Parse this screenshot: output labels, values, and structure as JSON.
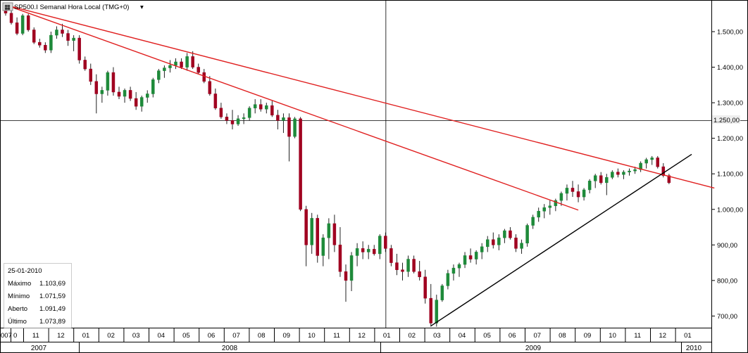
{
  "header": {
    "symbol_icon": "chart-symbol-icon",
    "title": "SP500.I Semanal Hora Local (TMG+0)",
    "dropdown_icon": "caret-down-icon"
  },
  "crosshair": {
    "price_label": "1.250,00"
  },
  "info_box": {
    "date": "25-01-2010",
    "rows": [
      {
        "label": "Máximo",
        "value": "1.103,69"
      },
      {
        "label": "Mínimo",
        "value": "1.071,59"
      },
      {
        "label": "Aberto",
        "value": "1.091,49"
      },
      {
        "label": "Último",
        "value": "1.073,89"
      }
    ]
  },
  "x_axis": {
    "first_cut_label": "007",
    "first_partial_label": "0",
    "months": [
      "11",
      "12",
      "01",
      "02",
      "03",
      "04",
      "05",
      "06",
      "07",
      "08",
      "09",
      "10",
      "11",
      "12",
      "01",
      "02",
      "03",
      "04",
      "05",
      "06",
      "07",
      "08",
      "09",
      "10",
      "11",
      "12",
      "01"
    ],
    "years": [
      "2007",
      "2008",
      "2009",
      "2010"
    ]
  },
  "colors": {
    "up": "#1e8a3a",
    "down": "#a00020",
    "wick": "#222222",
    "trend_red": "#e02020",
    "trend_black": "#000000",
    "grid": "#000000"
  },
  "chart_data": {
    "type": "candlestick",
    "title": "SP500.I Semanal Hora Local (TMG+0)",
    "ylim": [
      670,
      1580
    ],
    "yticks": [
      "1.500,00",
      "1.400,00",
      "1.300,00",
      "1.200,00",
      "1.100,00",
      "1.000,00",
      "900,00",
      "800,00",
      "700,00"
    ],
    "ytick_values": [
      1500,
      1400,
      1300,
      1200,
      1100,
      1000,
      900,
      800,
      700
    ],
    "x_start": "2007-10-01",
    "candles": [
      [
        1560,
        1575,
        1545,
        1552
      ],
      [
        1552,
        1560,
        1520,
        1525
      ],
      [
        1525,
        1540,
        1490,
        1495
      ],
      [
        1495,
        1550,
        1490,
        1545
      ],
      [
        1545,
        1550,
        1500,
        1505
      ],
      [
        1505,
        1512,
        1465,
        1470
      ],
      [
        1470,
        1480,
        1455,
        1462
      ],
      [
        1462,
        1470,
        1440,
        1448
      ],
      [
        1448,
        1500,
        1440,
        1490
      ],
      [
        1490,
        1515,
        1480,
        1505
      ],
      [
        1505,
        1522,
        1485,
        1495
      ],
      [
        1495,
        1505,
        1460,
        1475
      ],
      [
        1475,
        1490,
        1445,
        1482
      ],
      [
        1482,
        1490,
        1410,
        1420
      ],
      [
        1420,
        1430,
        1390,
        1395
      ],
      [
        1395,
        1410,
        1350,
        1360
      ],
      [
        1360,
        1380,
        1270,
        1325
      ],
      [
        1325,
        1345,
        1300,
        1335
      ],
      [
        1335,
        1390,
        1320,
        1385
      ],
      [
        1385,
        1400,
        1320,
        1330
      ],
      [
        1330,
        1345,
        1310,
        1318
      ],
      [
        1318,
        1340,
        1300,
        1335
      ],
      [
        1335,
        1345,
        1305,
        1312
      ],
      [
        1312,
        1330,
        1280,
        1290
      ],
      [
        1290,
        1320,
        1275,
        1315
      ],
      [
        1315,
        1335,
        1300,
        1325
      ],
      [
        1325,
        1370,
        1315,
        1365
      ],
      [
        1365,
        1395,
        1355,
        1390
      ],
      [
        1390,
        1405,
        1370,
        1398
      ],
      [
        1398,
        1420,
        1385,
        1405
      ],
      [
        1405,
        1425,
        1395,
        1415
      ],
      [
        1415,
        1425,
        1395,
        1400
      ],
      [
        1400,
        1440,
        1390,
        1430
      ],
      [
        1430,
        1445,
        1395,
        1400
      ],
      [
        1400,
        1410,
        1380,
        1385
      ],
      [
        1385,
        1395,
        1355,
        1360
      ],
      [
        1360,
        1375,
        1320,
        1325
      ],
      [
        1325,
        1340,
        1280,
        1285
      ],
      [
        1285,
        1300,
        1255,
        1260
      ],
      [
        1260,
        1270,
        1240,
        1250
      ],
      [
        1250,
        1280,
        1225,
        1240
      ],
      [
        1240,
        1265,
        1235,
        1255
      ],
      [
        1255,
        1270,
        1240,
        1258
      ],
      [
        1258,
        1290,
        1250,
        1285
      ],
      [
        1285,
        1310,
        1270,
        1295
      ],
      [
        1295,
        1310,
        1275,
        1282
      ],
      [
        1282,
        1300,
        1270,
        1292
      ],
      [
        1292,
        1305,
        1260,
        1265
      ],
      [
        1265,
        1280,
        1225,
        1250
      ],
      [
        1250,
        1270,
        1215,
        1258
      ],
      [
        1258,
        1270,
        1135,
        1205
      ],
      [
        1205,
        1260,
        1200,
        1255
      ],
      [
        1255,
        1260,
        995,
        1000
      ],
      [
        1000,
        1010,
        840,
        900
      ],
      [
        900,
        990,
        875,
        975
      ],
      [
        975,
        985,
        850,
        870
      ],
      [
        870,
        930,
        840,
        920
      ],
      [
        920,
        975,
        860,
        960
      ],
      [
        960,
        985,
        880,
        900
      ],
      [
        900,
        950,
        810,
        825
      ],
      [
        825,
        845,
        740,
        800
      ],
      [
        800,
        880,
        770,
        870
      ],
      [
        870,
        905,
        840,
        890
      ],
      [
        890,
        910,
        860,
        880
      ],
      [
        880,
        900,
        860,
        888
      ],
      [
        888,
        900,
        870,
        875
      ],
      [
        875,
        930,
        860,
        925
      ],
      [
        925,
        935,
        880,
        890
      ],
      [
        890,
        900,
        840,
        850
      ],
      [
        850,
        875,
        815,
        830
      ],
      [
        830,
        850,
        800,
        825
      ],
      [
        825,
        870,
        810,
        860
      ],
      [
        860,
        870,
        820,
        825
      ],
      [
        825,
        855,
        800,
        810
      ],
      [
        810,
        830,
        735,
        750
      ],
      [
        750,
        790,
        670,
        680
      ],
      [
        680,
        760,
        670,
        745
      ],
      [
        745,
        790,
        740,
        785
      ],
      [
        785,
        830,
        775,
        820
      ],
      [
        820,
        845,
        800,
        835
      ],
      [
        835,
        850,
        810,
        845
      ],
      [
        845,
        880,
        835,
        870
      ],
      [
        870,
        890,
        850,
        860
      ],
      [
        860,
        885,
        845,
        880
      ],
      [
        880,
        905,
        860,
        895
      ],
      [
        895,
        925,
        880,
        915
      ],
      [
        915,
        935,
        890,
        900
      ],
      [
        900,
        930,
        885,
        920
      ],
      [
        920,
        945,
        905,
        940
      ],
      [
        940,
        950,
        915,
        920
      ],
      [
        920,
        930,
        880,
        890
      ],
      [
        890,
        915,
        875,
        905
      ],
      [
        905,
        960,
        895,
        955
      ],
      [
        955,
        985,
        945,
        978
      ],
      [
        978,
        1005,
        965,
        995
      ],
      [
        995,
        1015,
        975,
        1005
      ],
      [
        1005,
        1025,
        985,
        1010
      ],
      [
        1010,
        1030,
        995,
        1025
      ],
      [
        1025,
        1050,
        1010,
        1045
      ],
      [
        1045,
        1070,
        1025,
        1060
      ],
      [
        1060,
        1080,
        1035,
        1050
      ],
      [
        1050,
        1070,
        1020,
        1035
      ],
      [
        1035,
        1060,
        1025,
        1055
      ],
      [
        1055,
        1085,
        1045,
        1080
      ],
      [
        1080,
        1100,
        1060,
        1095
      ],
      [
        1095,
        1105,
        1070,
        1075
      ],
      [
        1075,
        1100,
        1040,
        1090
      ],
      [
        1090,
        1110,
        1085,
        1105
      ],
      [
        1105,
        1115,
        1090,
        1098
      ],
      [
        1098,
        1110,
        1085,
        1105
      ],
      [
        1105,
        1115,
        1095,
        1108
      ],
      [
        1108,
        1120,
        1100,
        1112
      ],
      [
        1112,
        1135,
        1105,
        1130
      ],
      [
        1130,
        1145,
        1115,
        1140
      ],
      [
        1140,
        1150,
        1125,
        1145
      ],
      [
        1145,
        1150,
        1115,
        1120
      ],
      [
        1120,
        1130,
        1090,
        1095
      ],
      [
        1095,
        1100,
        1071,
        1075
      ]
    ],
    "trendlines": [
      {
        "color": "red",
        "from": [
          0,
          1575
        ],
        "to": [
          125,
          1060
        ]
      },
      {
        "color": "red",
        "from": [
          0,
          1575
        ],
        "to": [
          101,
          998
        ]
      },
      {
        "color": "black",
        "from": [
          75,
          672
        ],
        "to": [
          121,
          1155
        ]
      }
    ],
    "crosshair": {
      "x_index": 67,
      "y_value": 1250
    }
  }
}
